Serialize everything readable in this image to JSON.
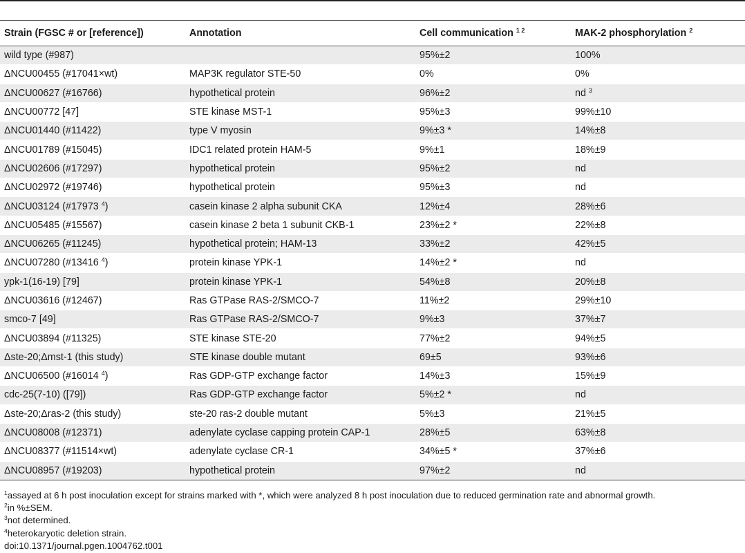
{
  "table": {
    "headers": {
      "strain": "Strain (FGSC # or [reference])",
      "annotation": "Annotation",
      "cell_comm": "Cell communication",
      "cell_comm_sup": "1 2",
      "mak2": "MAK-2 phosphorylation",
      "mak2_sup": "2"
    },
    "rows": [
      {
        "strain": "wild type (#987)",
        "strain_sup": "",
        "strain_end": "",
        "annotation": "",
        "cc": "95%±2",
        "cc_sup": "",
        "mak": "100%",
        "mak_sup": ""
      },
      {
        "strain": "ΔNCU00455 (#17041×wt)",
        "strain_sup": "",
        "strain_end": "",
        "annotation": "MAP3K regulator STE-50",
        "cc": "0%",
        "cc_sup": "",
        "mak": "0%",
        "mak_sup": ""
      },
      {
        "strain": "ΔNCU00627 (#16766)",
        "strain_sup": "",
        "strain_end": "",
        "annotation": "hypothetical protein",
        "cc": "96%±2",
        "cc_sup": "",
        "mak": "nd",
        "mak_sup": "3"
      },
      {
        "strain": "ΔNCU00772 [47]",
        "strain_sup": "",
        "strain_end": "",
        "annotation": "STE kinase MST-1",
        "cc": "95%±3",
        "cc_sup": "",
        "mak": "99%±10",
        "mak_sup": ""
      },
      {
        "strain": "ΔNCU01440 (#11422)",
        "strain_sup": "",
        "strain_end": "",
        "annotation": "type V myosin",
        "cc": "9%±3 *",
        "cc_sup": "",
        "mak": "14%±8",
        "mak_sup": ""
      },
      {
        "strain": "ΔNCU01789 (#15045)",
        "strain_sup": "",
        "strain_end": "",
        "annotation": "IDC1 related protein HAM-5",
        "cc": "9%±1",
        "cc_sup": "",
        "mak": "18%±9",
        "mak_sup": ""
      },
      {
        "strain": "ΔNCU02606 (#17297)",
        "strain_sup": "",
        "strain_end": "",
        "annotation": "hypothetical protein",
        "cc": "95%±2",
        "cc_sup": "",
        "mak": "nd",
        "mak_sup": ""
      },
      {
        "strain": "ΔNCU02972 (#19746)",
        "strain_sup": "",
        "strain_end": "",
        "annotation": "hypothetical protein",
        "cc": "95%±3",
        "cc_sup": "",
        "mak": "nd",
        "mak_sup": ""
      },
      {
        "strain": "ΔNCU03124 (#17973 ",
        "strain_sup": "4",
        "strain_end": ")",
        "annotation": "casein kinase 2 alpha subunit CKA",
        "cc": "12%±4",
        "cc_sup": "",
        "mak": "28%±6",
        "mak_sup": ""
      },
      {
        "strain": "ΔNCU05485 (#15567)",
        "strain_sup": "",
        "strain_end": "",
        "annotation": "casein kinase 2 beta 1 subunit CKB-1",
        "cc": "23%±2 *",
        "cc_sup": "",
        "mak": "22%±8",
        "mak_sup": ""
      },
      {
        "strain": "ΔNCU06265 (#11245)",
        "strain_sup": "",
        "strain_end": "",
        "annotation": "hypothetical protein; HAM-13",
        "cc": "33%±2",
        "cc_sup": "",
        "mak": "42%±5",
        "mak_sup": ""
      },
      {
        "strain": "ΔNCU07280 (#13416 ",
        "strain_sup": "4",
        "strain_end": ")",
        "annotation": "protein kinase YPK-1",
        "cc": "14%±2 *",
        "cc_sup": "",
        "mak": "nd",
        "mak_sup": ""
      },
      {
        "strain": "ypk-1(16-19) [79]",
        "strain_sup": "",
        "strain_end": "",
        "annotation": "protein kinase YPK-1",
        "cc": "54%±8",
        "cc_sup": "",
        "mak": "20%±8",
        "mak_sup": ""
      },
      {
        "strain": "ΔNCU03616 (#12467)",
        "strain_sup": "",
        "strain_end": "",
        "annotation": "Ras GTPase RAS-2/SMCO-7",
        "cc": "11%±2",
        "cc_sup": "",
        "mak": "29%±10",
        "mak_sup": ""
      },
      {
        "strain": "smco-7 [49]",
        "strain_sup": "",
        "strain_end": "",
        "annotation": "Ras GTPase RAS-2/SMCO-7",
        "cc": "9%±3",
        "cc_sup": "",
        "mak": "37%±7",
        "mak_sup": ""
      },
      {
        "strain": "ΔNCU03894 (#11325)",
        "strain_sup": "",
        "strain_end": "",
        "annotation": "STE kinase STE-20",
        "cc": "77%±2",
        "cc_sup": "",
        "mak": "94%±5",
        "mak_sup": ""
      },
      {
        "strain": "Δste-20;Δmst-1 (this study)",
        "strain_sup": "",
        "strain_end": "",
        "annotation": "STE kinase double mutant",
        "cc": "69±5",
        "cc_sup": "",
        "mak": "93%±6",
        "mak_sup": ""
      },
      {
        "strain": "ΔNCU06500 (#16014 ",
        "strain_sup": "4",
        "strain_end": ")",
        "annotation": "Ras GDP-GTP exchange factor",
        "cc": "14%±3",
        "cc_sup": "",
        "mak": "15%±9",
        "mak_sup": ""
      },
      {
        "strain": "cdc-25(7-10) ([79])",
        "strain_sup": "",
        "strain_end": "",
        "annotation": "Ras GDP-GTP exchange factor",
        "cc": "5%±2 *",
        "cc_sup": "",
        "mak": "nd",
        "mak_sup": ""
      },
      {
        "strain": "Δste-20;Δras-2 (this study)",
        "strain_sup": "",
        "strain_end": "",
        "annotation": "ste-20 ras-2 double mutant",
        "cc": "5%±3",
        "cc_sup": "",
        "mak": "21%±5",
        "mak_sup": ""
      },
      {
        "strain": "ΔNCU08008 (#12371)",
        "strain_sup": "",
        "strain_end": "",
        "annotation": "adenylate cyclase capping protein CAP-1",
        "cc": "28%±5",
        "cc_sup": "",
        "mak": "63%±8",
        "mak_sup": ""
      },
      {
        "strain": "ΔNCU08377 (#11514×wt)",
        "strain_sup": "",
        "strain_end": "",
        "annotation": "adenylate cyclase CR-1",
        "cc": "34%±5 *",
        "cc_sup": "",
        "mak": "37%±6",
        "mak_sup": ""
      },
      {
        "strain": "ΔNCU08957 (#19203)",
        "strain_sup": "",
        "strain_end": "",
        "annotation": "hypothetical protein",
        "cc": "97%±2",
        "cc_sup": "",
        "mak": "nd",
        "mak_sup": ""
      }
    ]
  },
  "footnotes": [
    {
      "mark": "1",
      "text": "assayed at 6 h post inoculation except for strains marked with *, which were analyzed 8 h post inoculation due to reduced germination rate and abnormal growth."
    },
    {
      "mark": "2",
      "text": "in %±SEM."
    },
    {
      "mark": "3",
      "text": "not determined."
    },
    {
      "mark": "4",
      "text": "heterokaryotic deletion strain."
    }
  ],
  "doi": "doi:10.1371/journal.pgen.1004762.t001"
}
